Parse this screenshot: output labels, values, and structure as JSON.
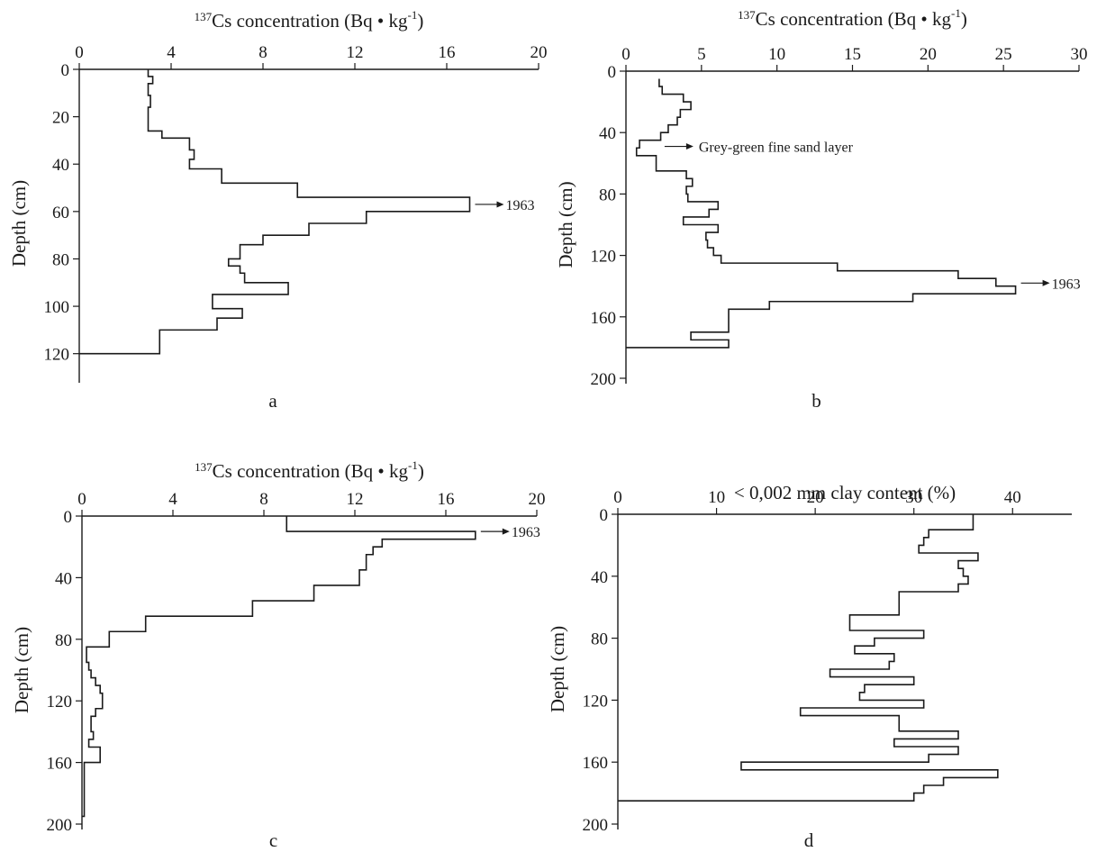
{
  "chart_data": [
    {
      "id": "a",
      "type": "line",
      "panel_label": "a",
      "xlabel_prefix": "137",
      "xlabel": "Cs concentration (Bq • kg",
      "xlabel_exp": "-1",
      "xlabel_suffix": ")",
      "ylabel": "Depth (cm)",
      "xlim": [
        0,
        20
      ],
      "ylim": [
        0,
        130
      ],
      "xticks": [
        0,
        4,
        8,
        12,
        16,
        20
      ],
      "yticks": [
        0,
        20,
        40,
        60,
        80,
        100,
        120
      ],
      "profile": [
        [
          0,
          3.0,
          3.0
        ],
        [
          3,
          3.2,
          3.2
        ],
        [
          6,
          3.0,
          3.0
        ],
        [
          11,
          3.1,
          3.1
        ],
        [
          16,
          3.0,
          3.0
        ],
        [
          20,
          3.0,
          3.0
        ],
        [
          26,
          3.6,
          3.6
        ],
        [
          29,
          4.8,
          4.8
        ],
        [
          34,
          5.0,
          5.0
        ],
        [
          38,
          4.8,
          4.8
        ],
        [
          42,
          6.2,
          6.2
        ],
        [
          48,
          9.5,
          9.5
        ],
        [
          54,
          17.0,
          17.0
        ],
        [
          60,
          12.5,
          12.5
        ],
        [
          65,
          10.0,
          10.0
        ],
        [
          70,
          8.0,
          8.0
        ],
        [
          74,
          7.0,
          7.0
        ],
        [
          80,
          6.5,
          6.5
        ],
        [
          83,
          7.0,
          7.0
        ],
        [
          86,
          7.2,
          7.2
        ],
        [
          90,
          9.1,
          9.1
        ],
        [
          95,
          5.8,
          5.8
        ],
        [
          101,
          7.1,
          7.1
        ],
        [
          105,
          6.0,
          6.0
        ],
        [
          110,
          3.5,
          3.5
        ],
        [
          120,
          0,
          0
        ]
      ],
      "annotations": [
        {
          "text": "1963",
          "depth": 57
        }
      ]
    },
    {
      "id": "b",
      "type": "line",
      "panel_label": "b",
      "xlabel_prefix": "137",
      "xlabel": "Cs concentration (Bq • kg",
      "xlabel_exp": "-1",
      "xlabel_suffix": ")",
      "ylabel": "Depth (cm)",
      "xlim": [
        0,
        30
      ],
      "ylim": [
        0,
        200
      ],
      "xticks": [
        0,
        5,
        10,
        15,
        20,
        25,
        30
      ],
      "yticks": [
        0,
        40,
        80,
        120,
        160,
        200
      ],
      "profile": [
        [
          5,
          2.2
        ],
        [
          10,
          2.4
        ],
        [
          15,
          3.8
        ],
        [
          20,
          4.3
        ],
        [
          25,
          3.6
        ],
        [
          30,
          3.4
        ],
        [
          35,
          2.8
        ],
        [
          40,
          2.3
        ],
        [
          45,
          0.9
        ],
        [
          50,
          0.7
        ],
        [
          55,
          2.0
        ],
        [
          60,
          2.0
        ],
        [
          65,
          4.0
        ],
        [
          70,
          4.4
        ],
        [
          75,
          4.0
        ],
        [
          80,
          4.1
        ],
        [
          85,
          6.1
        ],
        [
          90,
          5.5
        ],
        [
          95,
          3.8
        ],
        [
          100,
          6.1
        ],
        [
          105,
          5.3
        ],
        [
          110,
          5.4
        ],
        [
          115,
          5.8
        ],
        [
          120,
          6.3
        ],
        [
          125,
          14.0
        ],
        [
          130,
          22.0
        ],
        [
          135,
          24.5
        ],
        [
          140,
          25.8
        ],
        [
          145,
          19.0
        ],
        [
          150,
          9.5
        ],
        [
          155,
          6.8
        ],
        [
          160,
          6.8
        ],
        [
          165,
          6.8
        ],
        [
          170,
          4.3
        ],
        [
          175,
          6.8
        ]
      ],
      "annotations": [
        {
          "text": "Grey-green fine sand layer",
          "depth": 49
        },
        {
          "text": "1963",
          "depth": 138
        }
      ]
    },
    {
      "id": "c",
      "type": "line",
      "panel_label": "c",
      "xlabel_prefix": "137",
      "xlabel": "Cs concentration (Bq • kg",
      "xlabel_exp": "-1",
      "xlabel_suffix": ")",
      "ylabel": "Depth (cm)",
      "xlim": [
        0,
        20
      ],
      "ylim": [
        0,
        200
      ],
      "xticks": [
        0,
        4,
        8,
        12,
        16,
        20
      ],
      "yticks": [
        0,
        40,
        80,
        120,
        160,
        200
      ],
      "profile": [
        [
          5,
          9.0
        ],
        [
          10,
          17.3
        ],
        [
          15,
          13.2
        ],
        [
          20,
          12.8
        ],
        [
          25,
          12.5
        ],
        [
          30,
          12.5
        ],
        [
          35,
          12.2
        ],
        [
          45,
          10.2
        ],
        [
          55,
          7.5
        ],
        [
          65,
          2.8
        ],
        [
          75,
          1.2
        ],
        [
          85,
          0.2
        ],
        [
          95,
          0.3
        ],
        [
          100,
          0.4
        ],
        [
          105,
          0.6
        ],
        [
          110,
          0.8
        ],
        [
          115,
          0.9
        ],
        [
          120,
          0.9
        ],
        [
          125,
          0.6
        ],
        [
          130,
          0.4
        ],
        [
          135,
          0.4
        ],
        [
          140,
          0.5
        ],
        [
          145,
          0.3
        ],
        [
          150,
          0.8
        ],
        [
          155,
          0.8
        ],
        [
          160,
          0.1
        ],
        [
          165,
          0.1
        ],
        [
          170,
          0.1
        ],
        [
          175,
          0.1
        ],
        [
          180,
          0.1
        ],
        [
          185,
          0.1
        ],
        [
          190,
          0.1
        ]
      ],
      "annotations": [
        {
          "text": "1963",
          "depth": 10
        }
      ]
    },
    {
      "id": "d",
      "type": "line",
      "panel_label": "d",
      "xlabel_prefix": "",
      "xlabel": "< 0,002 mm clay content (%)",
      "xlabel_exp": "",
      "xlabel_suffix": "",
      "ylabel": "Depth (cm)",
      "xlim": [
        0,
        46
      ],
      "ylim": [
        0,
        200
      ],
      "xticks": [
        0,
        10,
        20,
        30,
        40
      ],
      "yticks": [
        0,
        40,
        80,
        120,
        160,
        200
      ],
      "profile": [
        [
          5,
          36.0
        ],
        [
          10,
          31.5
        ],
        [
          15,
          31.0
        ],
        [
          20,
          30.5
        ],
        [
          25,
          36.5
        ],
        [
          30,
          34.5
        ],
        [
          35,
          35.0
        ],
        [
          40,
          35.5
        ],
        [
          45,
          34.5
        ],
        [
          50,
          28.5
        ],
        [
          55,
          28.5
        ],
        [
          60,
          28.5
        ],
        [
          65,
          23.5
        ],
        [
          70,
          23.5
        ],
        [
          75,
          31.0
        ],
        [
          80,
          26.0
        ],
        [
          85,
          24.0
        ],
        [
          90,
          28.0
        ],
        [
          95,
          27.5
        ],
        [
          100,
          21.5
        ],
        [
          105,
          30.0
        ],
        [
          110,
          25.0
        ],
        [
          115,
          24.5
        ],
        [
          120,
          31.0
        ],
        [
          125,
          18.5
        ],
        [
          130,
          28.5
        ],
        [
          135,
          28.5
        ],
        [
          140,
          34.5
        ],
        [
          145,
          28.0
        ],
        [
          150,
          34.5
        ],
        [
          155,
          31.5
        ],
        [
          160,
          12.5
        ],
        [
          165,
          38.5
        ],
        [
          170,
          33.0
        ],
        [
          175,
          31.0
        ],
        [
          180,
          30.0
        ]
      ],
      "annotations": []
    }
  ]
}
